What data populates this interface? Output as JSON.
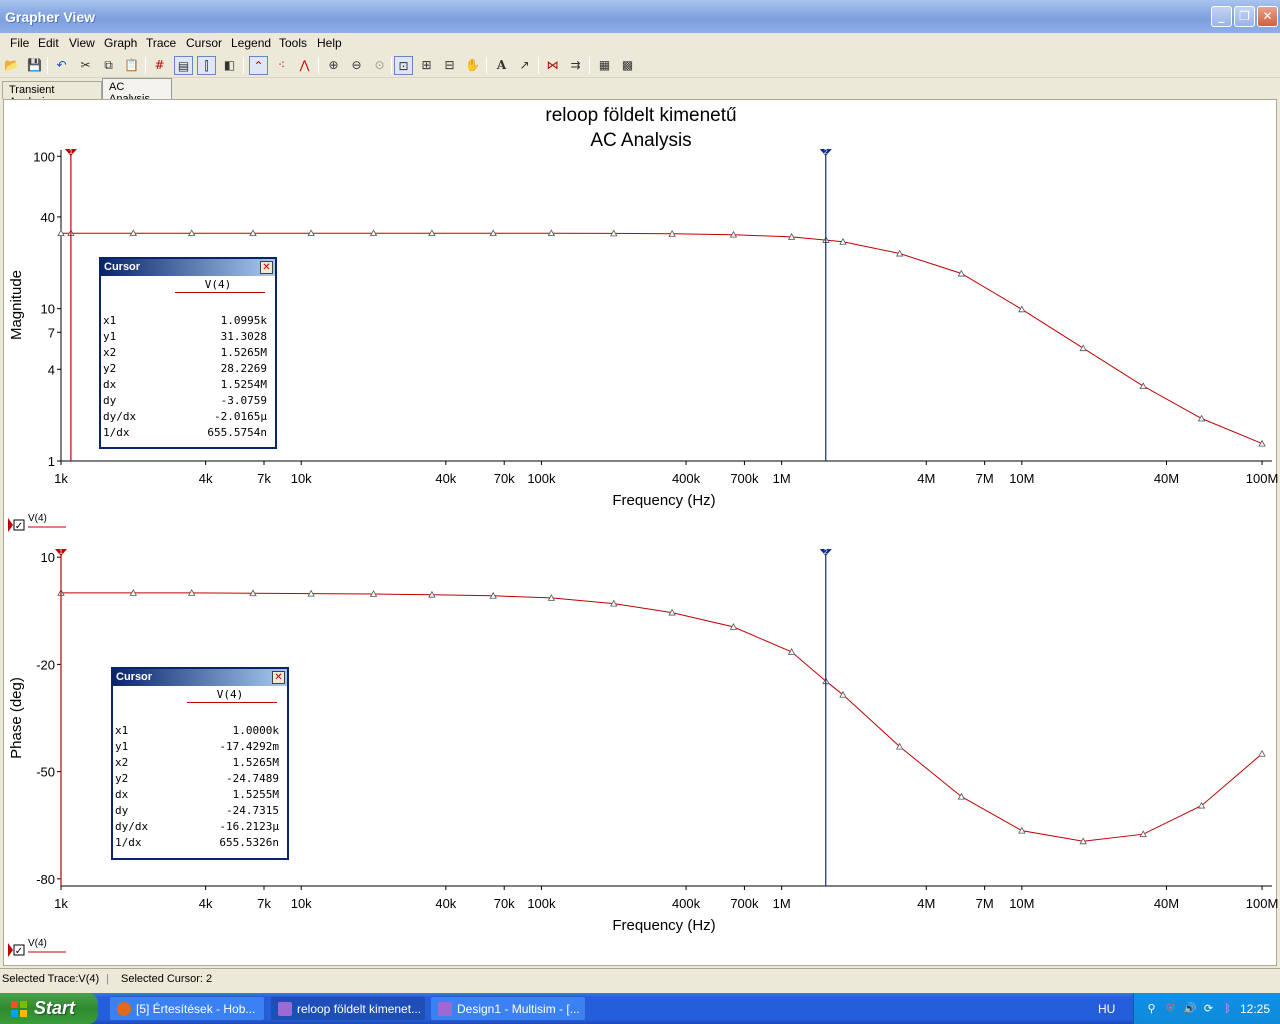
{
  "window": {
    "title": "Grapher View"
  },
  "menu": [
    "File",
    "Edit",
    "View",
    "Graph",
    "Trace",
    "Cursor",
    "Legend",
    "Tools",
    "Help"
  ],
  "tabs": [
    {
      "label": "Transient Analysis",
      "active": false
    },
    {
      "label": "AC Analysis",
      "active": true
    }
  ],
  "chart_data": [
    {
      "type": "line",
      "title": "reloop földelt kimenetű",
      "subtitle": "AC Analysis",
      "xlabel": "Frequency (Hz)",
      "ylabel": "Magnitude",
      "xscale": "log",
      "yscale": "log",
      "xlim": [
        1000,
        110000000
      ],
      "ylim": [
        1,
        110
      ],
      "xticks": [
        "1k",
        "4k",
        "7k",
        "10k",
        "40k",
        "70k",
        "100k",
        "400k",
        "700k",
        "1M",
        "4M",
        "7M",
        "10M",
        "40M",
        "100M"
      ],
      "yticks": [
        "100",
        "40",
        "10",
        "7",
        "4",
        "1"
      ],
      "series": [
        {
          "name": "V(4)",
          "color": "#c00000",
          "x": [
            1000,
            1100,
            2000,
            3500,
            6300,
            11000,
            20000,
            35000,
            63000,
            110000,
            200000,
            350000,
            630000,
            1100000,
            1530000,
            1800000,
            3100000,
            5600000,
            10000000,
            18000000,
            32000000,
            56000000,
            100000000
          ],
          "y": [
            31.3,
            31.3,
            31.3,
            31.3,
            31.3,
            31.3,
            31.3,
            31.3,
            31.3,
            31.3,
            31.2,
            31.0,
            30.6,
            29.6,
            28.2,
            27.5,
            23.0,
            17.0,
            9.9,
            5.5,
            3.1,
            1.9,
            1.3
          ]
        }
      ],
      "legend": "V(4)",
      "cursors": [
        {
          "label": "1",
          "x": 1099.5,
          "color": "#c00000"
        },
        {
          "label": "2",
          "x": 1526500,
          "color": "#0a2a8a"
        }
      ],
      "cursor_box": {
        "title": "Cursor",
        "column": "V(4)",
        "rows": [
          [
            "x1",
            "1.0995k"
          ],
          [
            "y1",
            "31.3028"
          ],
          [
            "x2",
            "1.5265M"
          ],
          [
            "y2",
            "28.2269"
          ],
          [
            "dx",
            "1.5254M"
          ],
          [
            "dy",
            "-3.0759"
          ],
          [
            "dy/dx",
            "-2.0165µ"
          ],
          [
            "1/dx",
            "655.5754n"
          ]
        ]
      }
    },
    {
      "type": "line",
      "xlabel": "Frequency (Hz)",
      "ylabel": "Phase (deg)",
      "xscale": "log",
      "xlim": [
        1000,
        110000000
      ],
      "ylim": [
        -82,
        12
      ],
      "xticks": [
        "1k",
        "4k",
        "7k",
        "10k",
        "40k",
        "70k",
        "100k",
        "400k",
        "700k",
        "1M",
        "4M",
        "7M",
        "10M",
        "40M",
        "100M"
      ],
      "yticks": [
        "10",
        "-20",
        "-50",
        "-80"
      ],
      "series": [
        {
          "name": "V(4)",
          "color": "#c00000",
          "x": [
            1000,
            2000,
            3500,
            6300,
            11000,
            20000,
            35000,
            63000,
            110000,
            200000,
            350000,
            630000,
            1100000,
            1530000,
            1800000,
            3100000,
            5600000,
            10000000,
            18000000,
            32000000,
            56000000,
            100000000
          ],
          "y": [
            0,
            0,
            0,
            -0.1,
            -0.2,
            -0.3,
            -0.5,
            -0.8,
            -1.4,
            -3.0,
            -5.5,
            -9.5,
            -16.5,
            -24.7,
            -28.5,
            -43.0,
            -57.0,
            -66.5,
            -69.5,
            -67.5,
            -59.5,
            -45.0
          ]
        }
      ],
      "legend": "V(4)",
      "cursors": [
        {
          "label": "1",
          "x": 1000,
          "color": "#c00000"
        },
        {
          "label": "2",
          "x": 1526500,
          "color": "#0a2a8a"
        }
      ],
      "cursor_box": {
        "title": "Cursor",
        "column": "V(4)",
        "rows": [
          [
            "x1",
            "1.0000k"
          ],
          [
            "y1",
            "-17.4292m"
          ],
          [
            "x2",
            "1.5265M"
          ],
          [
            "y2",
            "-24.7489"
          ],
          [
            "dx",
            "1.5255M"
          ],
          [
            "dy",
            "-24.7315"
          ],
          [
            "dy/dx",
            "-16.2123µ"
          ],
          [
            "1/dx",
            "655.5326n"
          ]
        ]
      }
    }
  ],
  "status": {
    "trace": "Selected Trace:V(4)",
    "cursor": "Selected Cursor: 2"
  },
  "taskbar": {
    "start": "Start",
    "tasks": [
      {
        "label": "[5] Értesítések - Hob...",
        "active": false,
        "color": "#e06a1a"
      },
      {
        "label": "reloop földelt kimenet...",
        "active": true,
        "color": "#9c6ad0"
      },
      {
        "label": "Design1 - Multisim - [...",
        "active": false,
        "color": "#9c6ad0"
      }
    ],
    "lang": "HU",
    "clock": "12:25"
  }
}
